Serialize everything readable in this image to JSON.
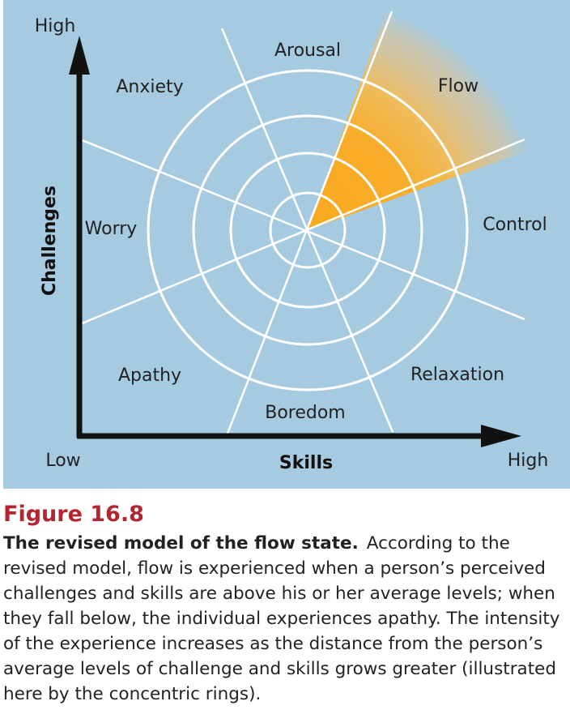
{
  "diagram": {
    "axes": {
      "y_title": "Challenges",
      "x_title": "Skills",
      "y_high": "High",
      "x_low": "Low",
      "x_high": "High"
    },
    "regions": {
      "arousal": "Arousal",
      "flow": "Flow",
      "anxiety": "Anxiety",
      "control": "Control",
      "worry": "Worry",
      "apathy": "Apathy",
      "relaxation": "Relaxation",
      "boredom": "Boredom"
    },
    "ring_count": 4,
    "highlighted_region": "Flow",
    "colors": {
      "background": "#a6cbe1",
      "rings": "#ffffff",
      "flow_highlight": "#f7a823",
      "axes": "#111111",
      "figure_number": "#b3262f"
    }
  },
  "caption": {
    "figure_number": "Figure 16.8",
    "title": "The revised model of the flow state.",
    "body": "According to the revised model, flow is experienced when a person’s perceived challenges and skills are above his or her average levels; when they fall below, the individual experiences apathy. The intensity of the experience increases as the distance from the person’s average levels of challenge and skills grows greater (illustrated here by the concentric rings)."
  }
}
